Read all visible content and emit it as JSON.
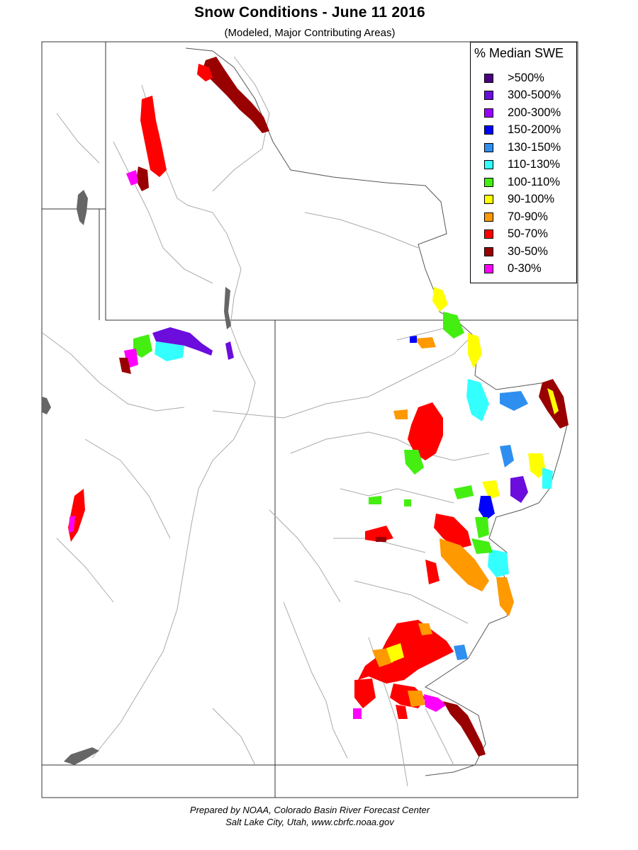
{
  "title": "Snow Conditions - June 11 2016",
  "subtitle": "(Modeled, Major Contributing Areas)",
  "legend": {
    "title": "% Median SWE",
    "items": [
      {
        "label": ">500%",
        "color": "#4b0082"
      },
      {
        "label": "300-500%",
        "color": "#6a0ddd"
      },
      {
        "label": "200-300%",
        "color": "#9b00ff"
      },
      {
        "label": "150-200%",
        "color": "#0000ff"
      },
      {
        "label": "130-150%",
        "color": "#2f8ff0"
      },
      {
        "label": "110-130%",
        "color": "#33ffff"
      },
      {
        "label": "100-110%",
        "color": "#44ee11"
      },
      {
        "label": "90-100%",
        "color": "#ffff00"
      },
      {
        "label": "70-90%",
        "color": "#ff9900"
      },
      {
        "label": "50-70%",
        "color": "#ff0000"
      },
      {
        "label": "30-50%",
        "color": "#990000"
      },
      {
        "label": "0-30%",
        "color": "#ff00ff"
      }
    ]
  },
  "credits": {
    "line1": "Prepared by NOAA, Colorado Basin River Forecast Center",
    "line2": "Salt Lake City, Utah, www.cbrfc.noaa.gov"
  },
  "colors": {
    "state_border": "#333333",
    "river": "#aaaaaa",
    "water_body": "#666666"
  }
}
